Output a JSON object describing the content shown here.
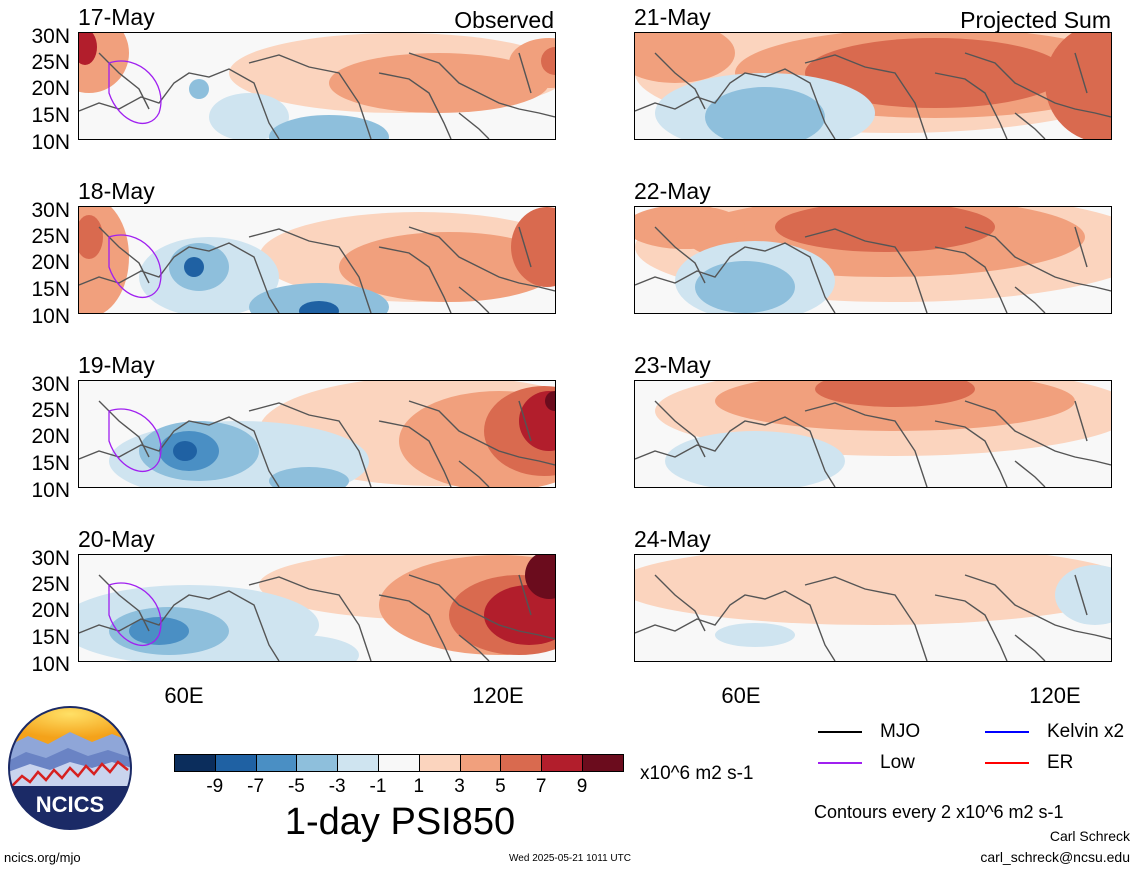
{
  "panels_left": [
    {
      "date": "17-May",
      "corner": "Observed"
    },
    {
      "date": "18-May",
      "corner": ""
    },
    {
      "date": "19-May",
      "corner": ""
    },
    {
      "date": "20-May",
      "corner": ""
    }
  ],
  "panels_right": [
    {
      "date": "21-May",
      "corner": "Projected Sum"
    },
    {
      "date": "22-May",
      "corner": ""
    },
    {
      "date": "23-May",
      "corner": ""
    },
    {
      "date": "24-May",
      "corner": ""
    }
  ],
  "lat_labels": [
    "30N",
    "25N",
    "20N",
    "15N",
    "10N"
  ],
  "lon_labels": [
    "60E",
    "120E"
  ],
  "colorbar": {
    "ticks": [
      "-9",
      "-7",
      "-5",
      "-3",
      "-1",
      "1",
      "3",
      "5",
      "7",
      "9"
    ],
    "colors": [
      "#0b2d5c",
      "#1f61a3",
      "#4a8fc4",
      "#8ebfdc",
      "#cfe4f0",
      "#f8f8f8",
      "#fbd4be",
      "#f1a07d",
      "#d96a4f",
      "#b21e2c",
      "#6b0c1d"
    ],
    "units": "x10^6 m2 s-1",
    "title": "1-day PSI850"
  },
  "legend": [
    {
      "label": "MJO",
      "color": "#000000"
    },
    {
      "label": "Kelvin x2",
      "color": "#0000ff"
    },
    {
      "label": "Low",
      "color": "#a020f0"
    },
    {
      "label": "ER",
      "color": "#ff0000"
    }
  ],
  "contour_note": "Contours every 2 x10^6 m2 s-1",
  "credit_name": "Carl Schreck",
  "credit_email": "carl_schreck@ncsu.edu",
  "logo_text": "NCICS",
  "footer_left": "ncics.org/mjo",
  "footer_center": "Wed 2025-05-21 1011 UTC"
}
